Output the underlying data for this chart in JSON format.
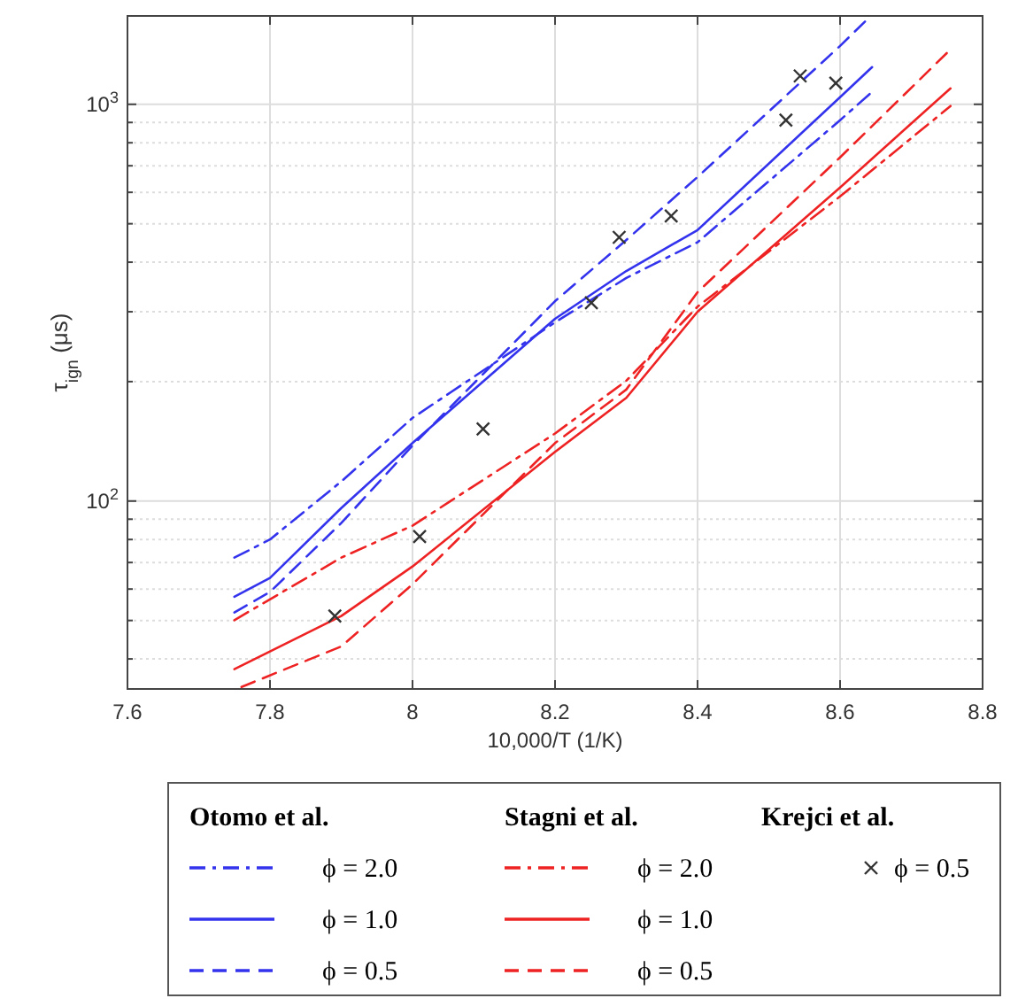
{
  "chart_data": {
    "type": "line",
    "xlabel": "10,000/T (1/K)",
    "ylabel": "τ$_{ign}$ (μs)",
    "log": "y",
    "grid": true,
    "legend": "bottom",
    "xlim": [
      7.6,
      8.8
    ],
    "xticks": [
      7.6,
      7.8,
      8,
      8.2,
      8.4,
      8.6,
      8.8
    ],
    "ylim": [
      33.6,
      1670
    ],
    "yticks": [
      {
        "value": 40,
        "label": null
      },
      {
        "value": 50,
        "label": null
      },
      {
        "value": 60,
        "label": null
      },
      {
        "value": 70,
        "label": null
      },
      {
        "value": 80,
        "label": null
      },
      {
        "value": 90,
        "label": null
      },
      {
        "value": 100,
        "label": "10$^{2}$"
      },
      {
        "value": 200,
        "label": null
      },
      {
        "value": 300,
        "label": null
      },
      {
        "value": 400,
        "label": null
      },
      {
        "value": 500,
        "label": null
      },
      {
        "value": 600,
        "label": null
      },
      {
        "value": 700,
        "label": null
      },
      {
        "value": 800,
        "label": null
      },
      {
        "value": 900,
        "label": null
      },
      {
        "value": 1000,
        "label": "10$^{3}$"
      }
    ],
    "annotations": [
      "Otomo et al.",
      "Stagni et al.",
      "Krejci et al."
    ],
    "series": [
      {
        "name": "ϕ = 2.0",
        "color": "#3333ee",
        "line_style": "dashdot",
        "x": [
          7.75,
          7.8,
          7.9,
          8.0,
          8.2,
          8.3,
          8.4,
          8.6,
          8.645
        ],
        "values": [
          72,
          80,
          112,
          162,
          282,
          365,
          449,
          912,
          1075
        ]
      },
      {
        "name": "ϕ = 1.0",
        "color": "#3333ee",
        "line_style": "solid",
        "x": [
          7.75,
          7.8,
          7.9,
          8.0,
          8.2,
          8.3,
          8.4,
          8.6,
          8.645
        ],
        "values": [
          57.4,
          64,
          96,
          140,
          288,
          380,
          482,
          1042,
          1241
        ]
      },
      {
        "name": "ϕ = 0.5",
        "color": "#3333ee",
        "line_style": "dashed",
        "x": [
          7.75,
          7.8,
          7.9,
          8.0,
          8.2,
          8.3,
          8.4,
          8.6,
          8.64
        ],
        "values": [
          52.4,
          59,
          88,
          138,
          319,
          455,
          656,
          1403,
          1650
        ]
      },
      {
        "name": "ϕ = 2.0",
        "color": "#ee2222",
        "line_style": "dashdot",
        "x": [
          7.75,
          7.9,
          8.0,
          8.2,
          8.3,
          8.4,
          8.6,
          8.755
        ],
        "values": [
          50.1,
          72,
          86.7,
          148,
          201,
          309,
          586,
          990
        ]
      },
      {
        "name": "ϕ = 1.0",
        "color": "#ee2222",
        "line_style": "solid",
        "x": [
          7.75,
          7.9,
          8.0,
          8.2,
          8.3,
          8.4,
          8.6,
          8.755
        ],
        "values": [
          37.7,
          51.3,
          68.4,
          133,
          182,
          300,
          617,
          1097
        ]
      },
      {
        "name": "ϕ = 0.5",
        "color": "#ee2222",
        "line_style": "dashed",
        "x": [
          7.76,
          7.9,
          8.0,
          8.2,
          8.3,
          8.4,
          8.6,
          8.755
        ],
        "values": [
          34,
          43,
          61.7,
          140,
          191,
          336,
          735,
          1375
        ]
      },
      {
        "name": "ϕ = 0.5",
        "type": "scatter",
        "marker": "cross",
        "color": "#333333",
        "x": [
          7.891,
          8.01,
          8.099,
          8.251,
          8.29,
          8.363,
          8.524,
          8.544,
          8.594
        ],
        "values": [
          51.3,
          81.4,
          152,
          316,
          462,
          523,
          912,
          1179,
          1131
        ]
      }
    ]
  }
}
